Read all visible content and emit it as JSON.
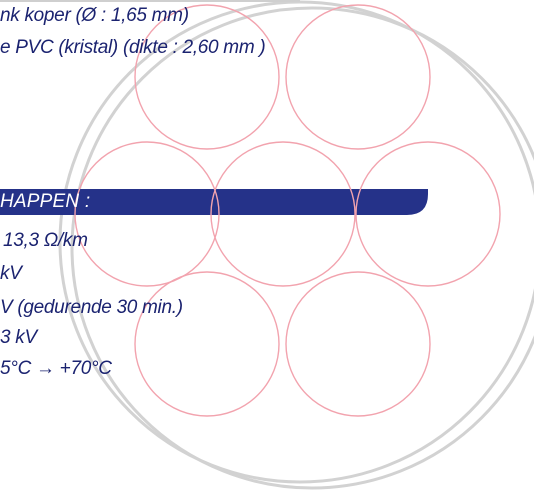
{
  "spec": {
    "conductor_line": "nk koper (Ø : 1,65 mm)",
    "insulation_line": "e PVC (kristal) (dikte : 2,60 mm )"
  },
  "properties": {
    "heading": "HAPPEN :",
    "items": [
      "13,3 Ω/km",
      "kV",
      "V (gedurende 30 min.)",
      "3 kV",
      "5°C → +70°C"
    ]
  },
  "colors": {
    "text": "#1b2370",
    "banner": "#253289",
    "circle_stroke": "#f2a3ae",
    "sheath_stroke": "#d2d2d2"
  }
}
